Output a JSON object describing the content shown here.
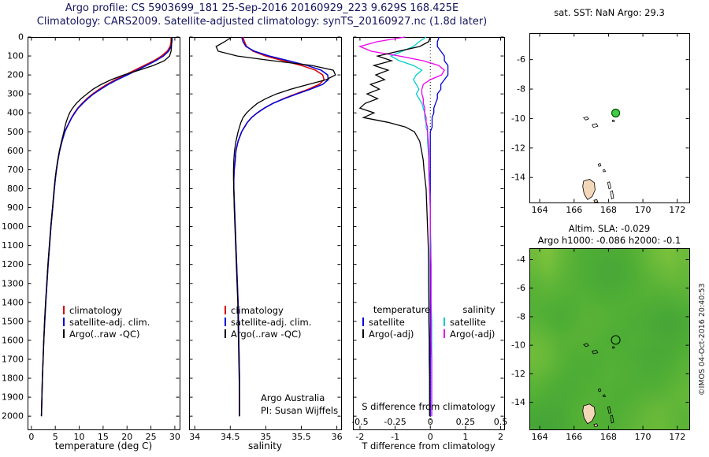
{
  "header": {
    "line1": "Argo profile: CS 5903699_181 25-Sep-2016 20160929_223 9.629S 168.425E",
    "line2": "Climatology: CARS2009. Satellite-adjusted climatology: synTS_20160927.nc (1.8d later)",
    "color": "#151560"
  },
  "credit": "©IMOS 04-Oct-2016 20:40:53",
  "islands": [
    {
      "pts": [
        [
          166.55,
          -9.95
        ],
        [
          166.75,
          -9.88
        ],
        [
          166.85,
          -10.02
        ],
        [
          166.68,
          -10.1
        ]
      ],
      "fill": "none"
    },
    {
      "pts": [
        [
          167.05,
          -10.42
        ],
        [
          167.3,
          -10.35
        ],
        [
          167.38,
          -10.52
        ],
        [
          167.12,
          -10.6
        ]
      ],
      "fill": "none"
    },
    {
      "pts": [
        [
          168.22,
          -10.12
        ],
        [
          168.33,
          -10.1
        ],
        [
          168.35,
          -10.2
        ],
        [
          168.25,
          -10.22
        ]
      ],
      "fill": "none"
    },
    {
      "pts": [
        [
          167.4,
          -13.1
        ],
        [
          167.52,
          -13.05
        ],
        [
          167.56,
          -13.2
        ],
        [
          167.44,
          -13.25
        ]
      ],
      "fill": "none"
    },
    {
      "pts": [
        [
          167.68,
          -13.5
        ],
        [
          167.78,
          -13.47
        ],
        [
          167.82,
          -13.6
        ],
        [
          167.7,
          -13.62
        ]
      ],
      "fill": "none"
    },
    {
      "pts": [
        [
          166.55,
          -14.25
        ],
        [
          166.9,
          -14.12
        ],
        [
          167.18,
          -14.35
        ],
        [
          167.22,
          -14.85
        ],
        [
          167.05,
          -15.3
        ],
        [
          166.78,
          -15.5
        ],
        [
          166.58,
          -15.1
        ],
        [
          166.5,
          -14.6
        ]
      ],
      "fill": "#f2d8b8"
    },
    {
      "pts": [
        [
          167.95,
          -14.35
        ],
        [
          168.06,
          -14.3
        ],
        [
          168.14,
          -14.72
        ],
        [
          168.03,
          -14.78
        ]
      ],
      "fill": "none"
    },
    {
      "pts": [
        [
          168.12,
          -14.95
        ],
        [
          168.23,
          -14.9
        ],
        [
          168.3,
          -15.4
        ],
        [
          168.18,
          -15.45
        ]
      ],
      "fill": "none"
    },
    {
      "pts": [
        [
          167.15,
          -15.55
        ],
        [
          167.32,
          -15.5
        ],
        [
          167.38,
          -15.66
        ],
        [
          167.2,
          -15.7
        ]
      ],
      "fill": "#f2d8b8"
    }
  ],
  "chart_data": [
    {
      "id": "temperature_profile",
      "type": "line",
      "xlabel": "temperature (deg C)",
      "xlim": [
        -0.8,
        31
      ],
      "xticks": [
        0,
        5,
        10,
        15,
        20,
        25,
        30
      ],
      "ylim": [
        0,
        2070
      ],
      "yticks": [
        0,
        100,
        200,
        300,
        400,
        500,
        600,
        700,
        800,
        900,
        1000,
        1100,
        1200,
        1300,
        1400,
        1500,
        1600,
        1700,
        1800,
        1900,
        2000
      ],
      "depths": [
        0,
        25,
        50,
        75,
        100,
        125,
        150,
        175,
        200,
        225,
        250,
        275,
        300,
        325,
        350,
        375,
        400,
        425,
        450,
        475,
        500,
        550,
        600,
        650,
        700,
        750,
        800,
        900,
        1000,
        1100,
        1200,
        1300,
        1400,
        1500,
        1600,
        1700,
        1800,
        1900,
        2000
      ],
      "series": [
        {
          "name": "climatology",
          "color": "#dd0000",
          "values": [
            29.2,
            29.2,
            29.0,
            28.4,
            27.2,
            25.6,
            23.6,
            21.6,
            19.6,
            17.6,
            15.8,
            14.2,
            12.8,
            11.6,
            10.6,
            9.7,
            9.0,
            8.4,
            7.9,
            7.4,
            7.0,
            6.4,
            5.9,
            5.55,
            5.25,
            5.0,
            4.8,
            4.45,
            4.1,
            3.8,
            3.5,
            3.25,
            3.0,
            2.8,
            2.6,
            2.45,
            2.3,
            2.2,
            2.1
          ]
        },
        {
          "name": "satellite-adj. clim.",
          "color": "#0000dd",
          "values": [
            29.45,
            29.4,
            29.2,
            28.7,
            27.6,
            26.0,
            24.1,
            22.1,
            20.1,
            18.0,
            16.1,
            14.5,
            13.0,
            11.8,
            10.75,
            9.8,
            9.1,
            8.45,
            7.95,
            7.45,
            7.0,
            6.4,
            5.9,
            5.55,
            5.25,
            5.0,
            4.8,
            4.45,
            4.1,
            3.8,
            3.5,
            3.25,
            3.0,
            2.8,
            2.6,
            2.45,
            2.3,
            2.2,
            2.1
          ]
        },
        {
          "name": "Argo(..raw -QC)",
          "color": "#000000",
          "values": [
            29.3,
            29.3,
            29.3,
            29.2,
            28.9,
            27.8,
            25.5,
            22.5,
            19.3,
            16.7,
            14.6,
            12.9,
            11.6,
            10.4,
            9.4,
            8.6,
            8.0,
            7.6,
            7.25,
            7.0,
            6.8,
            6.3,
            5.85,
            5.5,
            5.2,
            4.95,
            4.75,
            4.4,
            4.05,
            3.75,
            3.45,
            3.2,
            2.95,
            2.75,
            2.6,
            2.45,
            2.3,
            2.2,
            2.1
          ]
        }
      ]
    },
    {
      "id": "salinity_profile",
      "type": "line",
      "xlabel": "salinity",
      "xlim": [
        33.92,
        36.06
      ],
      "xticks": [
        34,
        34.5,
        35,
        35.5,
        36
      ],
      "annotation": [
        "Argo Australia",
        "PI: Susan Wijffels"
      ],
      "series": [
        {
          "name": "climatology",
          "color": "#dd0000",
          "values": [
            34.68,
            34.7,
            34.73,
            34.82,
            35.0,
            35.25,
            35.5,
            35.7,
            35.8,
            35.82,
            35.75,
            35.6,
            35.42,
            35.25,
            35.1,
            34.98,
            34.88,
            34.8,
            34.74,
            34.7,
            34.66,
            34.61,
            34.58,
            34.57,
            34.555,
            34.55,
            34.55,
            34.56,
            34.57,
            34.58,
            34.59,
            34.6,
            34.61,
            34.615,
            34.62,
            34.625,
            34.63,
            34.63,
            34.63
          ]
        },
        {
          "name": "satellite-adj. clim.",
          "color": "#0000dd",
          "values": [
            34.66,
            34.68,
            34.72,
            34.84,
            35.05,
            35.32,
            35.58,
            35.78,
            35.87,
            35.88,
            35.8,
            35.63,
            35.44,
            35.26,
            35.1,
            34.98,
            34.88,
            34.8,
            34.74,
            34.7,
            34.66,
            34.61,
            34.58,
            34.57,
            34.555,
            34.55,
            34.55,
            34.56,
            34.57,
            34.58,
            34.59,
            34.6,
            34.61,
            34.615,
            34.62,
            34.625,
            34.63,
            34.63,
            34.63
          ]
        },
        {
          "name": "Argo(..raw -QC)",
          "color": "#000000",
          "values": [
            34.52,
            34.42,
            34.3,
            34.33,
            34.6,
            35.1,
            35.65,
            35.95,
            35.98,
            35.85,
            35.6,
            35.35,
            35.15,
            35.0,
            34.88,
            34.8,
            34.73,
            34.68,
            34.65,
            34.63,
            34.61,
            34.58,
            34.56,
            34.55,
            34.545,
            34.545,
            34.55,
            34.555,
            34.565,
            34.575,
            34.585,
            34.595,
            34.605,
            34.61,
            34.615,
            34.62,
            34.625,
            34.63,
            34.63
          ]
        }
      ]
    },
    {
      "id": "difference_profile",
      "type": "line",
      "xlabel": "T difference from climatology",
      "inner_label": "S difference from climatology",
      "t_xlim": [
        -2.2,
        2.1
      ],
      "t_xticks": [
        -2,
        -1,
        0,
        1,
        2
      ],
      "s_xticks": [
        -0.5,
        -0.25,
        0,
        0.25,
        0.5
      ],
      "s_scale_factor": 4,
      "zero_line": true,
      "legend_headers": [
        "temperature",
        "salinity"
      ],
      "series": [
        {
          "name": "satellite",
          "group": "temperature",
          "units": "T",
          "color": "#0000dd",
          "values": [
            0.25,
            0.2,
            0.2,
            0.3,
            0.4,
            0.4,
            0.5,
            0.5,
            0.5,
            0.4,
            0.3,
            0.3,
            0.2,
            0.2,
            0.15,
            0.1,
            0.1,
            0.05,
            0.05,
            0.05,
            0.0,
            0.0,
            0.0,
            0.0,
            0.0,
            0.0,
            0.0,
            0.0,
            0.0,
            0.0,
            0.0,
            0.0,
            0.0,
            0.0,
            0.0,
            0.0,
            0.0,
            0.0,
            0.0
          ]
        },
        {
          "name": "Argo(-adj)",
          "group": "temperature",
          "units": "T",
          "color": "#000000",
          "values": [
            0.0,
            -0.05,
            -0.3,
            -0.9,
            -1.5,
            -1.1,
            -1.6,
            -1.2,
            -1.55,
            -1.3,
            -1.7,
            -1.45,
            -1.8,
            -1.5,
            -1.85,
            -2.0,
            -1.6,
            -1.9,
            -1.2,
            -0.7,
            -0.45,
            -0.3,
            -0.25,
            -0.2,
            -0.18,
            -0.15,
            -0.12,
            -0.1,
            -0.08,
            -0.06,
            -0.05,
            -0.05,
            -0.04,
            -0.04,
            -0.03,
            -0.03,
            -0.02,
            -0.02,
            -0.02
          ]
        },
        {
          "name": "satellite",
          "group": "salinity",
          "units": "S",
          "color": "#00cccc",
          "values": [
            -0.03,
            -0.08,
            -0.12,
            -0.2,
            -0.28,
            -0.22,
            -0.12,
            -0.06,
            -0.1,
            -0.12,
            -0.1,
            -0.08,
            -0.1,
            -0.08,
            -0.06,
            -0.05,
            -0.04,
            -0.04,
            -0.03,
            -0.03,
            -0.02,
            -0.02,
            -0.015,
            -0.01,
            -0.01,
            -0.01,
            -0.005,
            0.0,
            0.0,
            0.005,
            0.005,
            0.005,
            0.005,
            0.01,
            0.01,
            0.01,
            0.01,
            0.01,
            0.01
          ]
        },
        {
          "name": "Argo(-adj)",
          "group": "salinity",
          "units": "S",
          "color": "#ee00ee",
          "values": [
            -0.18,
            -0.38,
            -0.5,
            -0.42,
            -0.22,
            -0.05,
            0.06,
            0.1,
            0.08,
            0.0,
            -0.05,
            -0.06,
            -0.06,
            -0.05,
            -0.05,
            -0.04,
            -0.04,
            -0.03,
            -0.03,
            -0.02,
            -0.02,
            -0.015,
            -0.01,
            -0.01,
            -0.01,
            -0.005,
            -0.005,
            0.0,
            0.0,
            0.0,
            0.005,
            0.005,
            0.005,
            0.005,
            0.005,
            0.01,
            0.01,
            0.01,
            0.01
          ]
        }
      ]
    },
    {
      "id": "sst_map",
      "type": "map",
      "title": "sat. SST: NaN Argo: 29.3",
      "xlim": [
        163.4,
        172.7
      ],
      "ylim": [
        -4.2,
        -15.7
      ],
      "xticks": [
        164,
        166,
        168,
        170,
        172
      ],
      "yticks": [
        -6,
        -8,
        -10,
        -12,
        -14
      ],
      "marker": {
        "lon": 168.42,
        "lat": -9.63,
        "fill": "#44cc44",
        "edge": "#005500"
      }
    },
    {
      "id": "sla_map",
      "type": "heatmap",
      "title_line1": "Altim. SLA: -0.029",
      "title_line2": "Argo h1000: -0.086 h2000: -0.1",
      "xlim": [
        163.4,
        172.7
      ],
      "ylim": [
        -3.2,
        -15.9
      ],
      "xticks": [
        164,
        166,
        168,
        170,
        172
      ],
      "yticks": [
        -4,
        -6,
        -8,
        -10,
        -12,
        -14
      ],
      "marker": {
        "lon": 168.42,
        "lat": -9.63,
        "fill": "none",
        "edge": "#002200"
      },
      "colormap": [
        [
          0.0,
          "#2a8a3e"
        ],
        [
          0.42,
          "#4fae35"
        ],
        [
          0.6,
          "#7cc23c"
        ],
        [
          1.0,
          "#d8e24a"
        ]
      ],
      "grid": [
        [
          0.55,
          0.6,
          0.52,
          0.46,
          0.42,
          0.4,
          0.38,
          0.4,
          0.44,
          0.5,
          0.56,
          0.58,
          0.54
        ],
        [
          0.52,
          0.56,
          0.5,
          0.45,
          0.41,
          0.37,
          0.34,
          0.36,
          0.42,
          0.48,
          0.52,
          0.55,
          0.52
        ],
        [
          0.47,
          0.5,
          0.47,
          0.44,
          0.42,
          0.39,
          0.36,
          0.38,
          0.42,
          0.45,
          0.48,
          0.5,
          0.49
        ],
        [
          0.45,
          0.46,
          0.44,
          0.43,
          0.44,
          0.42,
          0.41,
          0.42,
          0.43,
          0.44,
          0.43,
          0.44,
          0.46
        ],
        [
          0.44,
          0.42,
          0.4,
          0.42,
          0.45,
          0.45,
          0.44,
          0.43,
          0.42,
          0.4,
          0.38,
          0.37,
          0.41
        ],
        [
          0.47,
          0.44,
          0.41,
          0.43,
          0.46,
          0.45,
          0.44,
          0.42,
          0.4,
          0.38,
          0.34,
          0.31,
          0.37
        ],
        [
          0.52,
          0.49,
          0.45,
          0.45,
          0.45,
          0.44,
          0.42,
          0.41,
          0.42,
          0.4,
          0.37,
          0.36,
          0.4
        ],
        [
          0.55,
          0.52,
          0.46,
          0.43,
          0.43,
          0.42,
          0.43,
          0.42,
          0.4,
          0.37,
          0.36,
          0.39,
          0.43
        ],
        [
          0.53,
          0.5,
          0.45,
          0.42,
          0.4,
          0.42,
          0.44,
          0.43,
          0.42,
          0.39,
          0.38,
          0.42,
          0.46
        ],
        [
          0.48,
          0.45,
          0.42,
          0.4,
          0.42,
          0.43,
          0.44,
          0.43,
          0.42,
          0.41,
          0.42,
          0.45,
          0.48
        ],
        [
          0.44,
          0.41,
          0.39,
          0.4,
          0.43,
          0.44,
          0.43,
          0.42,
          0.43,
          0.45,
          0.46,
          0.48,
          0.5
        ],
        [
          0.38,
          0.35,
          0.37,
          0.42,
          0.45,
          0.43,
          0.42,
          0.43,
          0.46,
          0.49,
          0.51,
          0.5,
          0.48
        ],
        [
          0.33,
          0.31,
          0.35,
          0.42,
          0.45,
          0.43,
          0.42,
          0.45,
          0.48,
          0.51,
          0.53,
          0.5,
          0.47
        ]
      ]
    }
  ]
}
